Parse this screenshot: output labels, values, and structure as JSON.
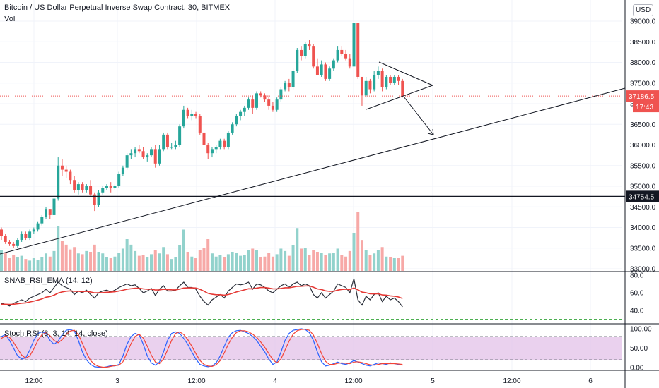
{
  "header": {
    "title": "Bitcoin / US Dollar Perpetual Inverse Swap Contract, 30, BITMEX",
    "volume_label": "Vol",
    "currency": "USD"
  },
  "price_axis": {
    "ticks": [
      "39000.0",
      "38500.0",
      "38000.0",
      "37500.0",
      "37000.0",
      "36500.0",
      "36000.0",
      "35500.0",
      "35000.0",
      "34500.0",
      "34000.0",
      "33500.0",
      "33000.0"
    ],
    "last_price_label": "37186.5",
    "countdown_label": "17:43",
    "horizontal_level_label": "34754.5",
    "last_price": 37186.5,
    "horizontal_level": 34754.5,
    "last_price_color": "#ef5350",
    "level_label_color": "#131722"
  },
  "indicators": {
    "snab": {
      "title": "SNAB_RSI_EMA (14, 12)",
      "ticks": [
        "80.0",
        "60.0",
        "40.0"
      ],
      "upper_band": 70,
      "lower_band": 30,
      "line_color": "#2a2e39",
      "ema_color": "#e53935"
    },
    "stoch": {
      "title": "Stoch RSI (3, 3, 14, 14, close)",
      "ticks": [
        "100.00",
        "50.00",
        "0.00"
      ],
      "upper_band": 80,
      "lower_band": 20,
      "band_fill": "#e1bee7",
      "k_color": "#2962ff",
      "d_color": "#f44336"
    }
  },
  "time_axis": {
    "labels": [
      "12:00",
      "3",
      "12:00",
      "4",
      "12:00",
      "5",
      "12:00",
      "6"
    ]
  },
  "chart_data": {
    "type": "candlestick",
    "symbol": "Bitcoin / US Dollar Perpetual Inverse Swap Contract",
    "interval": "30",
    "exchange": "BITMEX",
    "ylim": [
      33000,
      39300
    ],
    "candles": [
      [
        33950,
        34000,
        33700,
        33800
      ],
      [
        33800,
        33850,
        33600,
        33650
      ],
      [
        33650,
        33700,
        33550,
        33600
      ],
      [
        33600,
        33650,
        33500,
        33550
      ],
      [
        33550,
        33750,
        33500,
        33700
      ],
      [
        33700,
        33900,
        33650,
        33850
      ],
      [
        33850,
        33900,
        33700,
        33750
      ],
      [
        33750,
        33950,
        33700,
        33900
      ],
      [
        33900,
        34000,
        33850,
        33950
      ],
      [
        33950,
        34150,
        33900,
        34100
      ],
      [
        34100,
        34300,
        34050,
        34250
      ],
      [
        34250,
        34500,
        34200,
        34450
      ],
      [
        34450,
        34450,
        34200,
        34300
      ],
      [
        34300,
        34750,
        34250,
        34700
      ],
      [
        34700,
        35700,
        34650,
        35500
      ],
      [
        35500,
        35650,
        35250,
        35400
      ],
      [
        35400,
        35500,
        35200,
        35350
      ],
      [
        35350,
        35400,
        35050,
        35150
      ],
      [
        35150,
        35250,
        34850,
        34900
      ],
      [
        34900,
        35100,
        34800,
        35050
      ],
      [
        35050,
        35100,
        34850,
        34900
      ],
      [
        34900,
        35050,
        34850,
        35000
      ],
      [
        35000,
        35150,
        34750,
        34800
      ],
      [
        34800,
        34850,
        34400,
        34550
      ],
      [
        34550,
        34900,
        34500,
        34850
      ],
      [
        34850,
        35000,
        34800,
        34950
      ],
      [
        34950,
        35050,
        34900,
        35000
      ],
      [
        35000,
        35100,
        34850,
        34950
      ],
      [
        34950,
        35050,
        34900,
        35000
      ],
      [
        35000,
        35350,
        34950,
        35300
      ],
      [
        35300,
        35500,
        35250,
        35450
      ],
      [
        35450,
        35800,
        35400,
        35750
      ],
      [
        35750,
        35900,
        35650,
        35800
      ],
      [
        35800,
        35950,
        35700,
        35900
      ],
      [
        35900,
        36000,
        35800,
        35850
      ],
      [
        35850,
        35950,
        35650,
        35700
      ],
      [
        35700,
        35800,
        35600,
        35750
      ],
      [
        35750,
        35950,
        35700,
        35900
      ],
      [
        35900,
        36000,
        35450,
        35550
      ],
      [
        35550,
        36000,
        35500,
        35900
      ],
      [
        35900,
        36300,
        35850,
        36250
      ],
      [
        36250,
        36300,
        35900,
        35950
      ],
      [
        35950,
        36050,
        35900,
        35950
      ],
      [
        35950,
        36100,
        35900,
        36000
      ],
      [
        36000,
        36500,
        35950,
        36450
      ],
      [
        36450,
        36950,
        36400,
        36850
      ],
      [
        36850,
        36900,
        36650,
        36700
      ],
      [
        36700,
        36850,
        36600,
        36750
      ],
      [
        36750,
        36800,
        36650,
        36700
      ],
      [
        36700,
        36750,
        36250,
        36300
      ],
      [
        36300,
        36350,
        35950,
        36000
      ],
      [
        36000,
        36050,
        35650,
        35800
      ],
      [
        35800,
        35950,
        35700,
        35900
      ],
      [
        35900,
        36000,
        35800,
        35950
      ],
      [
        35950,
        36150,
        35900,
        36100
      ],
      [
        36100,
        36150,
        35900,
        35950
      ],
      [
        35950,
        36350,
        35900,
        36300
      ],
      [
        36300,
        36550,
        36250,
        36500
      ],
      [
        36500,
        36750,
        36450,
        36700
      ],
      [
        36700,
        36850,
        36600,
        36800
      ],
      [
        36800,
        36950,
        36700,
        36900
      ],
      [
        36900,
        37150,
        36850,
        37100
      ],
      [
        37100,
        37200,
        36750,
        36900
      ],
      [
        36900,
        37300,
        36850,
        37250
      ],
      [
        37250,
        37300,
        37150,
        37200
      ],
      [
        37200,
        37250,
        37050,
        37100
      ],
      [
        37100,
        37200,
        36850,
        36950
      ],
      [
        36950,
        37050,
        36800,
        36850
      ],
      [
        36850,
        37150,
        36800,
        37100
      ],
      [
        37100,
        37400,
        37050,
        37350
      ],
      [
        37350,
        37550,
        37300,
        37500
      ],
      [
        37500,
        37600,
        37300,
        37400
      ],
      [
        37400,
        37850,
        37350,
        37800
      ],
      [
        37800,
        38350,
        37750,
        38300
      ],
      [
        38300,
        38400,
        38050,
        38150
      ],
      [
        38150,
        38500,
        38100,
        38450
      ],
      [
        38450,
        38550,
        38300,
        38400
      ],
      [
        38400,
        38450,
        37850,
        37900
      ],
      [
        37900,
        38100,
        37700,
        37700
      ],
      [
        37700,
        38050,
        37650,
        37950
      ],
      [
        37950,
        38000,
        37550,
        37600
      ],
      [
        37600,
        37900,
        37550,
        37850
      ],
      [
        37850,
        38100,
        37800,
        38050
      ],
      [
        38050,
        38400,
        38000,
        38300
      ],
      [
        38300,
        38400,
        38150,
        38200
      ],
      [
        38200,
        38300,
        38050,
        38100
      ],
      [
        38100,
        38200,
        37850,
        37900
      ],
      [
        37900,
        39050,
        37850,
        38950
      ],
      [
        38950,
        38950,
        37600,
        37650
      ],
      [
        37650,
        37650,
        36950,
        37200
      ],
      [
        37200,
        37650,
        37150,
        37550
      ],
      [
        37550,
        37600,
        37250,
        37350
      ],
      [
        37350,
        37800,
        37300,
        37700
      ],
      [
        37700,
        37900,
        37600,
        37800
      ],
      [
        37800,
        37850,
        37300,
        37400
      ],
      [
        37400,
        37700,
        37350,
        37650
      ],
      [
        37650,
        37700,
        37450,
        37500
      ],
      [
        37500,
        37700,
        37450,
        37650
      ],
      [
        37650,
        37700,
        37450,
        37550
      ],
      [
        37550,
        37600,
        37150,
        37186.5
      ]
    ],
    "volume": [
      [
        260,
        0
      ],
      [
        230,
        1
      ],
      [
        160,
        1
      ],
      [
        200,
        1
      ],
      [
        170,
        0
      ],
      [
        190,
        0
      ],
      [
        150,
        1
      ],
      [
        130,
        0
      ],
      [
        160,
        0
      ],
      [
        140,
        0
      ],
      [
        170,
        0
      ],
      [
        220,
        0
      ],
      [
        180,
        1
      ],
      [
        250,
        0
      ],
      [
        560,
        0
      ],
      [
        380,
        1
      ],
      [
        330,
        1
      ],
      [
        270,
        1
      ],
      [
        300,
        1
      ],
      [
        220,
        0
      ],
      [
        210,
        1
      ],
      [
        250,
        0
      ],
      [
        240,
        1
      ],
      [
        330,
        1
      ],
      [
        240,
        0
      ],
      [
        220,
        0
      ],
      [
        170,
        0
      ],
      [
        160,
        1
      ],
      [
        180,
        0
      ],
      [
        230,
        0
      ],
      [
        280,
        0
      ],
      [
        400,
        0
      ],
      [
        330,
        0
      ],
      [
        250,
        0
      ],
      [
        190,
        1
      ],
      [
        200,
        1
      ],
      [
        170,
        0
      ],
      [
        210,
        0
      ],
      [
        260,
        1
      ],
      [
        220,
        0
      ],
      [
        300,
        0
      ],
      [
        210,
        1
      ],
      [
        150,
        0
      ],
      [
        170,
        0
      ],
      [
        320,
        0
      ],
      [
        520,
        0
      ],
      [
        240,
        1
      ],
      [
        180,
        0
      ],
      [
        160,
        1
      ],
      [
        260,
        1
      ],
      [
        290,
        1
      ],
      [
        400,
        1
      ],
      [
        220,
        0
      ],
      [
        180,
        0
      ],
      [
        200,
        0
      ],
      [
        170,
        1
      ],
      [
        210,
        0
      ],
      [
        240,
        0
      ],
      [
        230,
        0
      ],
      [
        190,
        0
      ],
      [
        200,
        0
      ],
      [
        260,
        0
      ],
      [
        280,
        1
      ],
      [
        260,
        0
      ],
      [
        170,
        1
      ],
      [
        180,
        1
      ],
      [
        230,
        1
      ],
      [
        180,
        1
      ],
      [
        210,
        0
      ],
      [
        280,
        0
      ],
      [
        250,
        0
      ],
      [
        190,
        1
      ],
      [
        320,
        0
      ],
      [
        540,
        0
      ],
      [
        280,
        1
      ],
      [
        290,
        0
      ],
      [
        200,
        1
      ],
      [
        260,
        1
      ],
      [
        240,
        1
      ],
      [
        230,
        0
      ],
      [
        200,
        1
      ],
      [
        220,
        0
      ],
      [
        230,
        0
      ],
      [
        280,
        0
      ],
      [
        200,
        1
      ],
      [
        180,
        1
      ],
      [
        250,
        1
      ],
      [
        480,
        0
      ],
      [
        740,
        1
      ],
      [
        390,
        1
      ],
      [
        260,
        0
      ],
      [
        200,
        1
      ],
      [
        220,
        0
      ],
      [
        260,
        0
      ],
      [
        300,
        1
      ],
      [
        180,
        0
      ],
      [
        170,
        1
      ],
      [
        160,
        0
      ],
      [
        160,
        1
      ],
      [
        190,
        1
      ]
    ],
    "snab_rsi": [
      48,
      47,
      45,
      48,
      50,
      52,
      50,
      54,
      56,
      58,
      60,
      64,
      60,
      66,
      72,
      68,
      66,
      64,
      58,
      62,
      60,
      63,
      58,
      54,
      60,
      62,
      63,
      61,
      63,
      66,
      68,
      70,
      68,
      69,
      65,
      60,
      62,
      65,
      57,
      64,
      68,
      62,
      62,
      63,
      68,
      72,
      66,
      66,
      64,
      56,
      50,
      46,
      52,
      55,
      58,
      54,
      62,
      66,
      70,
      69,
      70,
      72,
      64,
      70,
      69,
      66,
      62,
      60,
      64,
      68,
      70,
      66,
      70,
      72,
      68,
      70,
      68,
      58,
      54,
      60,
      54,
      58,
      62,
      70,
      68,
      66,
      60,
      76,
      52,
      46,
      56,
      52,
      58,
      60,
      50,
      56,
      52,
      54,
      50,
      44
    ],
    "snab_ema": [
      47,
      47,
      46.7,
      47,
      47.5,
      48.2,
      48.5,
      49.5,
      50.5,
      51.7,
      53,
      55,
      55.7,
      57.3,
      59.6,
      61,
      61.8,
      62.2,
      61.6,
      61.6,
      61.3,
      61.6,
      60.9,
      59.9,
      59.9,
      60.2,
      60.6,
      60.7,
      61.1,
      61.9,
      62.9,
      64,
      64.6,
      65.2,
      65.2,
      64.4,
      64,
      64.2,
      63.1,
      63.2,
      63.9,
      63.6,
      63.4,
      63.3,
      64.1,
      65.4,
      65.5,
      65.6,
      65.4,
      63.9,
      61.8,
      59.4,
      58.3,
      57.8,
      57.8,
      57.3,
      58,
      59.3,
      60.9,
      62.1,
      63.3,
      64.6,
      64.5,
      65.3,
      65.9,
      65.9,
      65.3,
      64.5,
      64.4,
      64.9,
      65.7,
      65.7,
      66.4,
      67.3,
      67.4,
      67.8,
      67.8,
      66.3,
      64.4,
      63.7,
      62.2,
      61.6,
      61.7,
      63,
      63.8,
      64.1,
      63.5,
      65.4,
      63.3,
      60.7,
      60,
      58.8,
      58.7,
      58.9,
      57.5,
      57.3,
      56.5,
      56.1,
      55.2,
      53.5
    ],
    "stoch_k": [
      80,
      85,
      70,
      50,
      30,
      22,
      25,
      45,
      70,
      88,
      92,
      88,
      70,
      60,
      68,
      85,
      96,
      98,
      94,
      70,
      40,
      20,
      8,
      2,
      1,
      0,
      2,
      5,
      4,
      8,
      30,
      60,
      80,
      88,
      84,
      60,
      30,
      12,
      6,
      14,
      40,
      70,
      88,
      92,
      88,
      75,
      60,
      40,
      22,
      8,
      4,
      2,
      4,
      12,
      30,
      55,
      78,
      90,
      95,
      96,
      92,
      88,
      80,
      70,
      55,
      40,
      22,
      8,
      14,
      40,
      70,
      88,
      96,
      98,
      100,
      98,
      90,
      70,
      40,
      15,
      4,
      6,
      10,
      14,
      10,
      8,
      12,
      18,
      14,
      10,
      6,
      4,
      8,
      12,
      10,
      8,
      12,
      10,
      8,
      6
    ],
    "stoch_d": [
      75,
      82,
      78,
      65,
      48,
      32,
      24,
      30,
      48,
      70,
      85,
      90,
      82,
      70,
      64,
      72,
      85,
      94,
      96,
      85,
      62,
      38,
      18,
      8,
      3,
      1,
      1,
      3,
      5,
      6,
      15,
      38,
      62,
      80,
      86,
      76,
      55,
      32,
      14,
      10,
      22,
      45,
      70,
      88,
      92,
      85,
      72,
      55,
      36,
      18,
      8,
      4,
      3,
      7,
      18,
      38,
      60,
      78,
      90,
      95,
      95,
      92,
      86,
      78,
      66,
      52,
      36,
      20,
      12,
      22,
      45,
      68,
      86,
      95,
      98,
      99,
      96,
      84,
      62,
      36,
      16,
      8,
      8,
      11,
      12,
      11,
      10,
      14,
      15,
      13,
      10,
      7,
      6,
      8,
      10,
      10,
      10,
      10,
      9,
      8
    ]
  }
}
